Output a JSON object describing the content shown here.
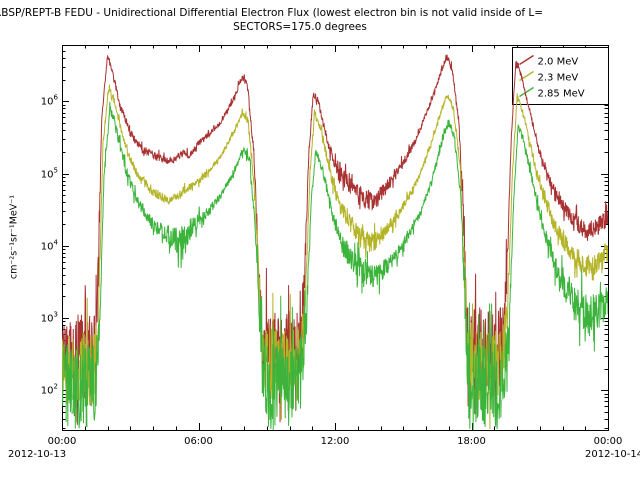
{
  "chart_data": {
    "type": "line",
    "title": "RBSP/REPT-B  FEDU - Unidirectional Differential Electron Flux (lowest electron bin is not valid inside of L=",
    "subtitle": "SECTORS=175.0 degrees",
    "ylabel": "cm⁻²s⁻¹sr⁻¹MeV⁻¹",
    "x": {
      "min_hours": 0,
      "max_hours": 24,
      "major_tick_hours": [
        0,
        6,
        12,
        18,
        24
      ],
      "tick_labels": [
        "00:00",
        "06:00",
        "12:00",
        "18:00",
        "00:00"
      ],
      "minor_step_hours": 1,
      "date_labels": [
        "2012-10-13",
        "2012-10-14"
      ]
    },
    "y": {
      "log_min": 1.45,
      "log_max": 6.78,
      "decade_exponents": [
        2,
        3,
        4,
        5,
        6
      ]
    },
    "series": [
      {
        "name": "2.0 MeV",
        "color": "#a83232",
        "points": [
          [
            0.0,
            2.5
          ],
          [
            1.45,
            2.5
          ],
          [
            1.55,
            3.2
          ],
          [
            1.75,
            5.8
          ],
          [
            2.0,
            6.62
          ],
          [
            2.2,
            6.45
          ],
          [
            2.5,
            6.0
          ],
          [
            3.0,
            5.55
          ],
          [
            3.5,
            5.35
          ],
          [
            4.2,
            5.22
          ],
          [
            4.8,
            5.16
          ],
          [
            5.3,
            5.28
          ],
          [
            5.6,
            5.25
          ],
          [
            6.0,
            5.42
          ],
          [
            6.5,
            5.55
          ],
          [
            7.0,
            5.72
          ],
          [
            7.5,
            6.0
          ],
          [
            7.9,
            6.33
          ],
          [
            8.15,
            6.25
          ],
          [
            8.45,
            5.2
          ],
          [
            8.7,
            3.2
          ],
          [
            8.85,
            2.55
          ],
          [
            10.45,
            2.55
          ],
          [
            10.65,
            3.5
          ],
          [
            10.85,
            5.3
          ],
          [
            11.05,
            6.12
          ],
          [
            11.3,
            5.95
          ],
          [
            11.7,
            5.4
          ],
          [
            12.1,
            5.05
          ],
          [
            12.6,
            4.85
          ],
          [
            13.1,
            4.7
          ],
          [
            13.6,
            4.62
          ],
          [
            14.1,
            4.75
          ],
          [
            14.6,
            4.95
          ],
          [
            15.1,
            5.2
          ],
          [
            15.6,
            5.5
          ],
          [
            16.1,
            5.9
          ],
          [
            16.6,
            6.35
          ],
          [
            16.9,
            6.62
          ],
          [
            17.15,
            6.45
          ],
          [
            17.45,
            5.7
          ],
          [
            17.7,
            4.0
          ],
          [
            17.85,
            2.6
          ],
          [
            19.35,
            2.6
          ],
          [
            19.55,
            3.6
          ],
          [
            19.75,
            5.5
          ],
          [
            19.95,
            6.55
          ],
          [
            20.2,
            6.35
          ],
          [
            20.6,
            5.8
          ],
          [
            21.0,
            5.3
          ],
          [
            21.5,
            4.85
          ],
          [
            22.0,
            4.55
          ],
          [
            22.5,
            4.35
          ],
          [
            23.0,
            4.22
          ],
          [
            23.5,
            4.25
          ],
          [
            24.0,
            4.4
          ]
        ],
        "noise": [
          [
            0,
            0.55
          ],
          [
            1.45,
            0.55
          ],
          [
            1.7,
            0.04
          ],
          [
            4.5,
            0.06
          ],
          [
            7.0,
            0.03
          ],
          [
            8.4,
            0.05
          ],
          [
            8.85,
            0.55
          ],
          [
            10.45,
            0.55
          ],
          [
            10.8,
            0.04
          ],
          [
            11.5,
            0.05
          ],
          [
            12.5,
            0.12
          ],
          [
            13.5,
            0.14
          ],
          [
            14.5,
            0.08
          ],
          [
            16.0,
            0.03
          ],
          [
            17.5,
            0.05
          ],
          [
            17.85,
            0.55
          ],
          [
            19.35,
            0.55
          ],
          [
            19.7,
            0.03
          ],
          [
            21.0,
            0.05
          ],
          [
            22.0,
            0.1
          ],
          [
            23.0,
            0.13
          ],
          [
            24,
            0.12
          ]
        ]
      },
      {
        "name": "2.3 MeV",
        "color": "#b4b428",
        "points": [
          [
            0.0,
            2.3
          ],
          [
            1.45,
            2.3
          ],
          [
            1.6,
            3.0
          ],
          [
            1.8,
            5.4
          ],
          [
            2.05,
            6.2
          ],
          [
            2.3,
            6.0
          ],
          [
            2.8,
            5.35
          ],
          [
            3.3,
            5.0
          ],
          [
            4.0,
            4.75
          ],
          [
            4.8,
            4.62
          ],
          [
            5.3,
            4.75
          ],
          [
            6.0,
            4.9
          ],
          [
            6.5,
            5.05
          ],
          [
            7.0,
            5.25
          ],
          [
            7.5,
            5.55
          ],
          [
            7.95,
            5.85
          ],
          [
            8.2,
            5.7
          ],
          [
            8.5,
            4.6
          ],
          [
            8.75,
            2.8
          ],
          [
            8.9,
            2.35
          ],
          [
            10.45,
            2.35
          ],
          [
            10.7,
            3.2
          ],
          [
            10.9,
            5.0
          ],
          [
            11.1,
            5.85
          ],
          [
            11.4,
            5.6
          ],
          [
            11.8,
            5.0
          ],
          [
            12.2,
            4.55
          ],
          [
            12.7,
            4.3
          ],
          [
            13.2,
            4.1
          ],
          [
            13.7,
            4.05
          ],
          [
            14.2,
            4.2
          ],
          [
            14.7,
            4.4
          ],
          [
            15.2,
            4.65
          ],
          [
            15.7,
            4.95
          ],
          [
            16.2,
            5.4
          ],
          [
            16.7,
            5.9
          ],
          [
            16.95,
            6.1
          ],
          [
            17.2,
            5.9
          ],
          [
            17.5,
            5.1
          ],
          [
            17.7,
            3.5
          ],
          [
            17.88,
            2.35
          ],
          [
            19.35,
            2.35
          ],
          [
            19.6,
            3.2
          ],
          [
            19.8,
            5.0
          ],
          [
            20.0,
            6.08
          ],
          [
            20.25,
            5.85
          ],
          [
            20.65,
            5.3
          ],
          [
            21.05,
            4.8
          ],
          [
            21.55,
            4.35
          ],
          [
            22.05,
            4.05
          ],
          [
            22.55,
            3.85
          ],
          [
            23.05,
            3.72
          ],
          [
            23.55,
            3.75
          ],
          [
            24.0,
            3.9
          ]
        ],
        "noise": [
          [
            0,
            0.5
          ],
          [
            1.45,
            0.5
          ],
          [
            1.7,
            0.04
          ],
          [
            4.5,
            0.07
          ],
          [
            7.0,
            0.03
          ],
          [
            8.4,
            0.05
          ],
          [
            8.9,
            0.5
          ],
          [
            10.45,
            0.5
          ],
          [
            10.85,
            0.04
          ],
          [
            11.5,
            0.05
          ],
          [
            12.5,
            0.12
          ],
          [
            13.5,
            0.16
          ],
          [
            14.5,
            0.08
          ],
          [
            16.0,
            0.03
          ],
          [
            17.5,
            0.05
          ],
          [
            17.88,
            0.5
          ],
          [
            19.35,
            0.5
          ],
          [
            19.7,
            0.03
          ],
          [
            21.0,
            0.06
          ],
          [
            22.0,
            0.12
          ],
          [
            23.0,
            0.16
          ],
          [
            24,
            0.14
          ]
        ]
      },
      {
        "name": "2.85 MeV",
        "color": "#3cb43c",
        "points": [
          [
            0.0,
            2.05
          ],
          [
            1.45,
            2.05
          ],
          [
            1.65,
            2.8
          ],
          [
            1.85,
            5.0
          ],
          [
            2.1,
            5.9
          ],
          [
            2.35,
            5.7
          ],
          [
            2.85,
            5.0
          ],
          [
            3.35,
            4.6
          ],
          [
            4.0,
            4.3
          ],
          [
            4.8,
            4.12
          ],
          [
            5.3,
            4.0
          ],
          [
            5.5,
            4.15
          ],
          [
            6.0,
            4.35
          ],
          [
            6.5,
            4.5
          ],
          [
            7.0,
            4.7
          ],
          [
            7.5,
            5.0
          ],
          [
            8.0,
            5.35
          ],
          [
            8.25,
            5.2
          ],
          [
            8.55,
            4.0
          ],
          [
            8.8,
            2.4
          ],
          [
            8.95,
            2.05
          ],
          [
            10.45,
            2.05
          ],
          [
            10.75,
            3.0
          ],
          [
            10.95,
            4.6
          ],
          [
            11.15,
            5.3
          ],
          [
            11.45,
            5.05
          ],
          [
            11.85,
            4.5
          ],
          [
            12.25,
            4.05
          ],
          [
            12.75,
            3.8
          ],
          [
            13.25,
            3.62
          ],
          [
            13.75,
            3.58
          ],
          [
            14.25,
            3.7
          ],
          [
            14.75,
            3.9
          ],
          [
            15.25,
            4.15
          ],
          [
            15.75,
            4.45
          ],
          [
            16.25,
            4.9
          ],
          [
            16.75,
            5.5
          ],
          [
            17.0,
            5.73
          ],
          [
            17.25,
            5.5
          ],
          [
            17.55,
            4.6
          ],
          [
            17.75,
            3.0
          ],
          [
            17.9,
            2.05
          ],
          [
            19.35,
            2.05
          ],
          [
            19.65,
            2.8
          ],
          [
            19.85,
            4.6
          ],
          [
            20.05,
            5.68
          ],
          [
            20.3,
            5.45
          ],
          [
            20.7,
            4.85
          ],
          [
            21.1,
            4.3
          ],
          [
            21.6,
            3.8
          ],
          [
            22.1,
            3.45
          ],
          [
            22.6,
            3.2
          ],
          [
            23.1,
            3.05
          ],
          [
            23.6,
            3.1
          ],
          [
            24.0,
            3.3
          ]
        ],
        "noise": [
          [
            0,
            0.6
          ],
          [
            1.45,
            0.6
          ],
          [
            1.75,
            0.05
          ],
          [
            4.5,
            0.1
          ],
          [
            5.3,
            0.3
          ],
          [
            5.6,
            0.12
          ],
          [
            7.0,
            0.04
          ],
          [
            8.4,
            0.06
          ],
          [
            8.95,
            0.6
          ],
          [
            10.45,
            0.6
          ],
          [
            10.9,
            0.05
          ],
          [
            11.5,
            0.06
          ],
          [
            12.5,
            0.15
          ],
          [
            13.5,
            0.2
          ],
          [
            14.5,
            0.1
          ],
          [
            16.0,
            0.04
          ],
          [
            17.5,
            0.06
          ],
          [
            17.9,
            0.6
          ],
          [
            19.35,
            0.6
          ],
          [
            19.8,
            0.04
          ],
          [
            21.0,
            0.08
          ],
          [
            22.0,
            0.2
          ],
          [
            23.0,
            0.28
          ],
          [
            24,
            0.25
          ]
        ]
      }
    ]
  }
}
